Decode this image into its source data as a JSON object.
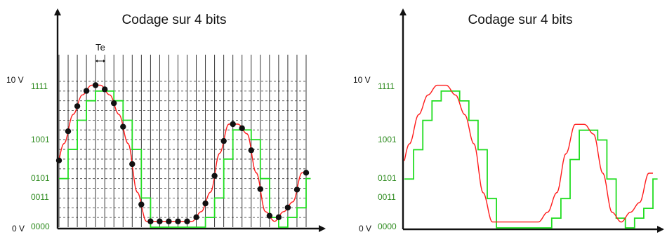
{
  "colors": {
    "signal": "#ff1a1a",
    "quantized": "#22dd22",
    "code_text": "#2e8b1f",
    "axis": "#111111",
    "grid": "#222222",
    "sample": "#111111"
  },
  "left_panel": {
    "title": "Codage sur 4 bits",
    "sample_period_label": "Te",
    "voltage_labels": {
      "max": "10 V",
      "min": "0 V"
    },
    "code_labels": [
      "1111",
      "1001",
      "0101",
      "0011",
      "0000"
    ]
  },
  "right_panel": {
    "title": "Codage sur 4 bits",
    "voltage_labels": {
      "max": "10 V",
      "min": "0 V"
    },
    "code_labels": [
      "1111",
      "1001",
      "0101",
      "0011",
      "0000"
    ]
  },
  "figure_data": {
    "bits": 4,
    "level_count": 16,
    "level_labels_shown": [
      15,
      9,
      5,
      3,
      0
    ],
    "sample_count": 28,
    "quantized_levels_per_sample": [
      5,
      8,
      11,
      13,
      14,
      14,
      13,
      11,
      8,
      3,
      0,
      0,
      0,
      0,
      0,
      0,
      1,
      3,
      7,
      10,
      10,
      9,
      5,
      1,
      0,
      1,
      2,
      5
    ]
  }
}
